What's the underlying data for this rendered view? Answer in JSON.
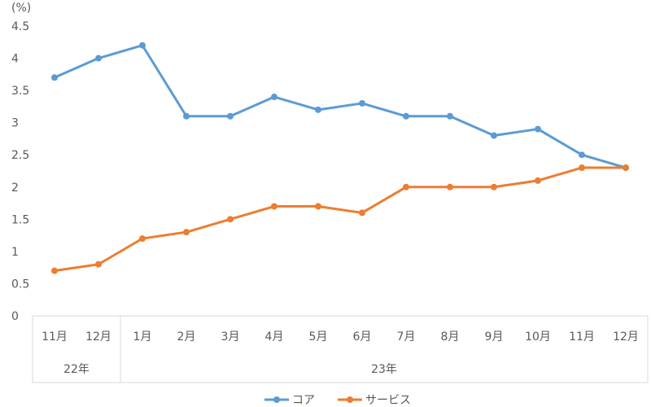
{
  "chart_data": {
    "type": "line",
    "ylabel": "(%)",
    "ylim": [
      0,
      4.5
    ],
    "ytick_labels": [
      "0",
      "0.5",
      "1",
      "1.5",
      "2",
      "2.5",
      "3",
      "3.5",
      "4",
      "4.5"
    ],
    "categories": [
      "11月",
      "12月",
      "1月",
      "2月",
      "3月",
      "4月",
      "5月",
      "6月",
      "7月",
      "8月",
      "9月",
      "10月",
      "11月",
      "12月"
    ],
    "year_groups": [
      {
        "label": "22年",
        "count": 2
      },
      {
        "label": "23年",
        "count": 12
      }
    ],
    "series": [
      {
        "name": "コア",
        "color": "#5b9bd5",
        "values": [
          3.7,
          4.0,
          4.2,
          3.1,
          3.1,
          3.4,
          3.2,
          3.3,
          3.1,
          3.1,
          2.8,
          2.9,
          2.5,
          2.3
        ]
      },
      {
        "name": "サービス",
        "color": "#ed7d31",
        "values": [
          0.7,
          0.8,
          1.2,
          1.3,
          1.5,
          1.7,
          1.7,
          1.6,
          2.0,
          2.0,
          2.0,
          2.1,
          2.3,
          2.3
        ]
      }
    ],
    "grid": false,
    "legend": "bottom-center"
  }
}
